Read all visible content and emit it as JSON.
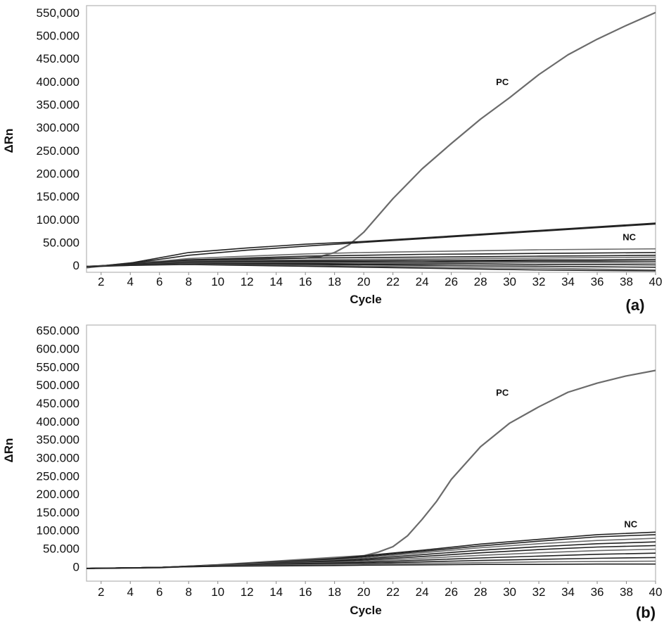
{
  "chart_data": [
    {
      "type": "line",
      "panel_label": "(a)",
      "xlabel": "Cycle",
      "ylabel": "ΔRn",
      "xlim": [
        1,
        40
      ],
      "ylim": [
        -15000,
        565000
      ],
      "x_ticks": [
        "2",
        "4",
        "6",
        "8",
        "10",
        "12",
        "14",
        "16",
        "18",
        "20",
        "22",
        "24",
        "26",
        "28",
        "30",
        "32",
        "34",
        "36",
        "38",
        "40"
      ],
      "y_ticks": [
        {
          "value": 0,
          "label": "0"
        },
        {
          "value": 50000,
          "label": "50.000"
        },
        {
          "value": 100000,
          "label": "100.000"
        },
        {
          "value": 150000,
          "label": "150.000"
        },
        {
          "value": 200000,
          "label": "200.000"
        },
        {
          "value": 250000,
          "label": "250.000"
        },
        {
          "value": 300000,
          "label": "300.000"
        },
        {
          "value": 350000,
          "label": "350.000"
        },
        {
          "value": 400000,
          "label": "400.000"
        },
        {
          "value": 450000,
          "label": "450.000"
        },
        {
          "value": 500000,
          "label": "500.000"
        },
        {
          "value": 550000,
          "label": "550,000"
        }
      ],
      "grid": false,
      "line_color": "#6b6b6b",
      "dark_band_color": "#222222",
      "annotations": [
        {
          "text": "PC",
          "x": 29.5,
          "y": 392000
        },
        {
          "text": "NC",
          "x": 38.2,
          "y": 55000
        }
      ],
      "series": [
        {
          "name": "PC",
          "x": [
            1,
            4,
            8,
            12,
            16,
            17,
            18,
            19,
            20,
            22,
            24,
            26,
            28,
            30,
            32,
            34,
            36,
            38,
            40
          ],
          "y": [
            -5000,
            5000,
            12000,
            14000,
            16000,
            19000,
            28000,
            45000,
            72000,
            145000,
            210000,
            265000,
            318000,
            365000,
            415000,
            458000,
            492000,
            522000,
            550000
          ]
        },
        {
          "x": [
            1,
            4,
            8,
            12,
            16,
            20,
            24,
            28,
            32,
            36,
            40
          ],
          "y": [
            -4000,
            5000,
            28000,
            38000,
            46000,
            52000,
            60000,
            68000,
            76000,
            84000,
            92000
          ]
        },
        {
          "x": [
            1,
            4,
            8,
            12,
            16,
            20,
            24,
            28,
            32,
            36,
            40
          ],
          "y": [
            -4000,
            4000,
            22000,
            33000,
            42000,
            50000,
            58000,
            66000,
            74000,
            82000,
            90000
          ]
        },
        {
          "x": [
            1,
            4,
            8,
            12,
            16,
            20,
            24,
            28,
            32,
            36,
            40
          ],
          "y": [
            -4000,
            3000,
            15000,
            20000,
            25000,
            28000,
            30000,
            32000,
            34000,
            35000,
            36000
          ]
        },
        {
          "x": [
            1,
            4,
            8,
            12,
            16,
            20,
            24,
            28,
            32,
            36,
            40
          ],
          "y": [
            -3000,
            3000,
            12000,
            16000,
            20000,
            22000,
            24000,
            25000,
            26000,
            27000,
            28000
          ]
        },
        {
          "x": [
            1,
            4,
            8,
            12,
            16,
            20,
            24,
            28,
            32,
            36,
            40
          ],
          "y": [
            -3000,
            3000,
            10000,
            13000,
            16000,
            17000,
            18000,
            19000,
            20000,
            21000,
            22000
          ]
        },
        {
          "x": [
            1,
            4,
            8,
            12,
            16,
            20,
            24,
            28,
            32,
            36,
            40
          ],
          "y": [
            -3000,
            2000,
            9000,
            11000,
            12000,
            13000,
            14000,
            15000,
            16000,
            17000,
            18000
          ]
        },
        {
          "x": [
            1,
            4,
            8,
            12,
            16,
            20,
            24,
            28,
            32,
            36,
            40
          ],
          "y": [
            -2000,
            2000,
            8000,
            9000,
            10000,
            10000,
            11000,
            11000,
            12000,
            12000,
            13000
          ]
        },
        {
          "x": [
            1,
            4,
            8,
            12,
            16,
            20,
            24,
            28,
            32,
            36,
            40
          ],
          "y": [
            -2000,
            2000,
            7000,
            7000,
            8000,
            8000,
            8000,
            9000,
            9000,
            9000,
            9000
          ]
        },
        {
          "x": [
            1,
            4,
            8,
            12,
            16,
            20,
            24,
            28,
            32,
            36,
            40
          ],
          "y": [
            -2000,
            1000,
            6000,
            6000,
            6000,
            6000,
            6000,
            6000,
            6000,
            6000,
            5000
          ]
        },
        {
          "x": [
            1,
            4,
            8,
            12,
            16,
            20,
            24,
            28,
            32,
            36,
            40
          ],
          "y": [
            -2000,
            1000,
            5000,
            4000,
            4000,
            3000,
            3000,
            3000,
            2000,
            2000,
            1000
          ]
        },
        {
          "x": [
            1,
            4,
            8,
            12,
            16,
            20,
            24,
            28,
            32,
            36,
            40
          ],
          "y": [
            -2000,
            1000,
            4000,
            3000,
            2000,
            1000,
            0,
            -1000,
            -2000,
            -3000,
            -4000
          ]
        },
        {
          "x": [
            1,
            4,
            8,
            12,
            16,
            20,
            24,
            28,
            32,
            36,
            40
          ],
          "y": [
            -2000,
            0,
            3000,
            1000,
            0,
            -2000,
            -3000,
            -5000,
            -6000,
            -8000,
            -10000
          ]
        },
        {
          "x": [
            1,
            4,
            8,
            12,
            16,
            20,
            24,
            28,
            32,
            36,
            40
          ],
          "y": [
            -3000,
            0,
            2000,
            0,
            -2000,
            -4000,
            -6000,
            -8000,
            -10000,
            -11000,
            -12000
          ]
        }
      ]
    },
    {
      "type": "line",
      "panel_label": "(b)",
      "xlabel": "Cycle",
      "ylabel": "ΔRn",
      "xlim": [
        1,
        40
      ],
      "ylim": [
        -40000,
        665000
      ],
      "x_ticks": [
        "2",
        "4",
        "6",
        "8",
        "10",
        "12",
        "14",
        "16",
        "18",
        "20",
        "22",
        "24",
        "26",
        "28",
        "30",
        "32",
        "34",
        "36",
        "38",
        "40"
      ],
      "y_ticks": [
        {
          "value": 0,
          "label": "0"
        },
        {
          "value": 50000,
          "label": "50.000"
        },
        {
          "value": 100000,
          "label": "100.000"
        },
        {
          "value": 150000,
          "label": "150.000"
        },
        {
          "value": 200000,
          "label": "200.000"
        },
        {
          "value": 250000,
          "label": "250.000"
        },
        {
          "value": 300000,
          "label": "300.000"
        },
        {
          "value": 350000,
          "label": "350.000"
        },
        {
          "value": 400000,
          "label": "400.000"
        },
        {
          "value": 450000,
          "label": "450.000"
        },
        {
          "value": 500000,
          "label": "500.000"
        },
        {
          "value": 550000,
          "label": "550.000"
        },
        {
          "value": 600000,
          "label": "600.000"
        },
        {
          "value": 650000,
          "label": "650.000"
        }
      ],
      "grid": false,
      "line_color": "#6b6b6b",
      "dark_band_color": "#222222",
      "annotations": [
        {
          "text": "PC",
          "x": 29.5,
          "y": 470000
        },
        {
          "text": "NC",
          "x": 38.3,
          "y": 108000
        }
      ],
      "series": [
        {
          "name": "PC",
          "x": [
            1,
            6,
            10,
            14,
            18,
            20,
            21,
            22,
            23,
            24,
            25,
            26,
            28,
            30,
            32,
            34,
            36,
            38,
            40
          ],
          "y": [
            -5000,
            -3000,
            5000,
            15000,
            25000,
            30000,
            40000,
            55000,
            85000,
            130000,
            180000,
            240000,
            330000,
            395000,
            440000,
            480000,
            505000,
            525000,
            540000
          ]
        },
        {
          "x": [
            1,
            6,
            10,
            14,
            18,
            20,
            24,
            28,
            32,
            36,
            40
          ],
          "y": [
            -5000,
            -2000,
            5000,
            13000,
            22000,
            30000,
            45000,
            62000,
            75000,
            88000,
            95000
          ]
        },
        {
          "x": [
            1,
            6,
            10,
            14,
            18,
            20,
            24,
            28,
            32,
            36,
            40
          ],
          "y": [
            -5000,
            -2000,
            4000,
            12000,
            20000,
            27000,
            42000,
            57000,
            70000,
            82000,
            88000
          ]
        },
        {
          "x": [
            1,
            6,
            10,
            14,
            18,
            20,
            24,
            28,
            32,
            36,
            40
          ],
          "y": [
            -5000,
            -2000,
            4000,
            11000,
            18000,
            24000,
            38000,
            52000,
            63000,
            72000,
            78000
          ]
        },
        {
          "x": [
            1,
            6,
            10,
            14,
            18,
            20,
            24,
            28,
            32,
            36,
            40
          ],
          "y": [
            -5000,
            -2000,
            3000,
            10000,
            16000,
            21000,
            33000,
            45000,
            55000,
            63000,
            68000
          ]
        },
        {
          "x": [
            1,
            6,
            10,
            14,
            18,
            20,
            24,
            28,
            32,
            36,
            40
          ],
          "y": [
            -5000,
            -2000,
            3000,
            9000,
            14000,
            18000,
            28000,
            38000,
            47000,
            54000,
            58000
          ]
        },
        {
          "x": [
            1,
            6,
            10,
            14,
            18,
            20,
            24,
            28,
            32,
            36,
            40
          ],
          "y": [
            -5000,
            -2000,
            3000,
            8000,
            12000,
            15000,
            23000,
            31000,
            38000,
            44000,
            48000
          ]
        },
        {
          "x": [
            1,
            6,
            10,
            14,
            18,
            20,
            24,
            28,
            32,
            36,
            40
          ],
          "y": [
            -5000,
            -2000,
            2000,
            7000,
            10000,
            12000,
            18000,
            24000,
            29000,
            34000,
            37000
          ]
        },
        {
          "x": [
            1,
            6,
            10,
            14,
            18,
            20,
            24,
            28,
            32,
            36,
            40
          ],
          "y": [
            -5000,
            -2000,
            2000,
            5000,
            8000,
            9000,
            13000,
            17000,
            20000,
            23000,
            25000
          ]
        },
        {
          "x": [
            1,
            6,
            10,
            14,
            18,
            20,
            24,
            28,
            32,
            36,
            40
          ],
          "y": [
            -5000,
            -2000,
            1000,
            4000,
            6000,
            7000,
            9000,
            11000,
            13000,
            14000,
            15000
          ]
        },
        {
          "x": [
            1,
            6,
            10,
            14,
            18,
            20,
            24,
            28,
            32,
            36,
            40
          ],
          "y": [
            -5000,
            -2000,
            1000,
            2000,
            3000,
            4000,
            5000,
            6000,
            6000,
            7000,
            7000
          ]
        }
      ]
    }
  ]
}
